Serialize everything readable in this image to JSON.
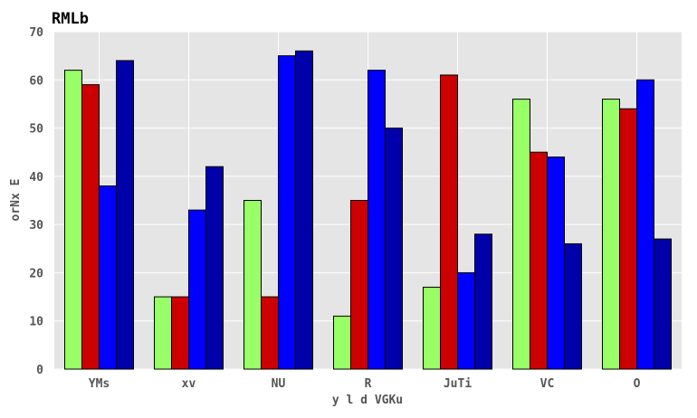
{
  "chart_data": {
    "type": "bar",
    "title": "RMLb",
    "xlabel": "y l d VGKu",
    "ylabel": "orNx E",
    "categories": [
      "YMs",
      "xv",
      "NU",
      "R",
      "JuTi",
      "VC",
      "O"
    ],
    "series": [
      {
        "color": "#99ff66",
        "values": [
          62,
          15,
          35,
          11,
          17,
          56,
          56
        ]
      },
      {
        "color": "#cc0000",
        "values": [
          59,
          15,
          15,
          35,
          61,
          45,
          54
        ]
      },
      {
        "color": "#0000ff",
        "values": [
          38,
          33,
          65,
          62,
          20,
          44,
          60
        ]
      },
      {
        "color": "#0000aa",
        "values": [
          64,
          42,
          66,
          50,
          28,
          26,
          27
        ]
      }
    ],
    "ylim": [
      0,
      70
    ],
    "yticks": [
      0,
      10,
      20,
      30,
      40,
      50,
      60,
      70
    ],
    "grid": true,
    "legend": "none",
    "background": "#e5e5e5",
    "grid_color": "#ffffff"
  }
}
